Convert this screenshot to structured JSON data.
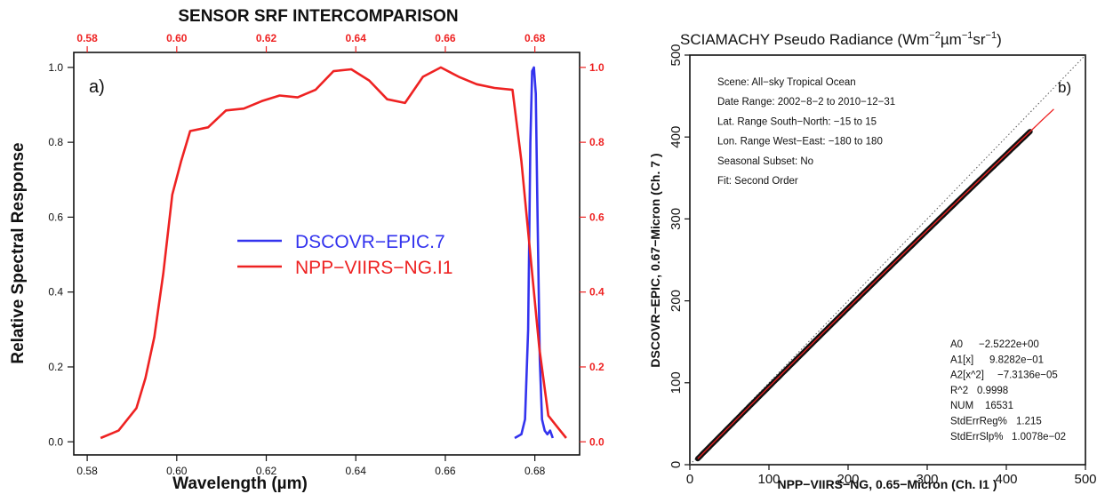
{
  "colors": {
    "red": "#ee2222",
    "blue": "#3333ee",
    "dark": "#111111",
    "fit": "#ee2222"
  },
  "chart_data": [
    {
      "type": "line",
      "title": "SENSOR SRF INTERCOMPARISON",
      "panel_label": "a)",
      "xlabel": "Wavelength (µm)",
      "ylabel": "Relative Spectral Response",
      "xlim": [
        0.577,
        0.69
      ],
      "ylim": [
        -0.035,
        1.04
      ],
      "x_ticks": [
        0.58,
        0.6,
        0.62,
        0.64,
        0.66,
        0.68
      ],
      "x_tick_labels": [
        "0.58",
        "0.60",
        "0.62",
        "0.64",
        "0.66",
        "0.68"
      ],
      "y_ticks": [
        0.0,
        0.2,
        0.4,
        0.6,
        0.8,
        1.0
      ],
      "y_tick_labels": [
        "0.0",
        "0.2",
        "0.4",
        "0.6",
        "0.8",
        "1.0"
      ],
      "legend_position": "center",
      "series": [
        {
          "name": "DSCOVR−EPIC.7",
          "color": "#3333ee",
          "x": [
            0.6755,
            0.677,
            0.6778,
            0.6785,
            0.679,
            0.6794,
            0.6798,
            0.6802,
            0.6806,
            0.6811,
            0.6816,
            0.6822,
            0.6828,
            0.6834,
            0.684
          ],
          "y": [
            0.01,
            0.02,
            0.06,
            0.3,
            0.8,
            0.99,
            1.0,
            0.93,
            0.6,
            0.22,
            0.06,
            0.03,
            0.02,
            0.03,
            0.01
          ]
        },
        {
          "name": "NPP−VIIRS−NG.I1",
          "color": "#ee2222",
          "x": [
            0.583,
            0.587,
            0.591,
            0.593,
            0.595,
            0.597,
            0.599,
            0.601,
            0.603,
            0.607,
            0.611,
            0.615,
            0.619,
            0.623,
            0.627,
            0.631,
            0.635,
            0.639,
            0.643,
            0.647,
            0.651,
            0.655,
            0.659,
            0.663,
            0.667,
            0.671,
            0.675,
            0.677,
            0.679,
            0.681,
            0.683,
            0.685,
            0.687
          ],
          "y": [
            0.01,
            0.03,
            0.09,
            0.17,
            0.28,
            0.45,
            0.66,
            0.75,
            0.83,
            0.84,
            0.885,
            0.89,
            0.91,
            0.925,
            0.92,
            0.94,
            0.99,
            0.995,
            0.965,
            0.915,
            0.905,
            0.975,
            1.0,
            0.975,
            0.955,
            0.945,
            0.94,
            0.75,
            0.5,
            0.25,
            0.07,
            0.04,
            0.01
          ]
        }
      ]
    },
    {
      "type": "scatter",
      "title": "SCIAMACHY Pseudo Radiance (Wm",
      "title_sup1": "−2",
      "title_mid": "µm",
      "title_sup2": "−1",
      "title_mid2": "sr",
      "title_sup3": "−1",
      "title_end": ")",
      "panel_label": "b)",
      "xlabel": "NPP−VIIRS−NG, 0.65−Micron (Ch.  I1 )",
      "ylabel": "DSCOVR−EPIC, 0.67−Micron (Ch.  7 )",
      "xlim": [
        0,
        500
      ],
      "ylim": [
        0,
        500
      ],
      "x_ticks": [
        0,
        100,
        200,
        300,
        400,
        500
      ],
      "x_tick_labels": [
        "0",
        "100",
        "200",
        "300",
        "400",
        "500"
      ],
      "y_ticks": [
        0,
        100,
        200,
        300,
        400,
        500
      ],
      "y_tick_labels": [
        "0",
        "100",
        "200",
        "300",
        "400",
        "500"
      ],
      "scatter_range": [
        10,
        430
      ],
      "fit": {
        "a0": -2.5222,
        "a1": 0.98282,
        "a2": -7.3136e-05,
        "x_range": [
          10,
          460
        ]
      },
      "info_lines": [
        "Scene:  All−sky Tropical Ocean",
        "Date Range:  2002−8−2 to 2010−12−31",
        "Lat. Range  South−North:  −15 to 15",
        "Lon. Range  West−East:  −180 to 180",
        "Seasonal Subset:  No",
        "Fit:  Second Order"
      ],
      "stats": [
        {
          "label": "A0",
          "value": "−2.5222e+00"
        },
        {
          "label": "A1[x]",
          "value": "9.8282e−01"
        },
        {
          "label": "A2[x^2]",
          "value": "−7.3136e−05"
        },
        {
          "label": "R^2",
          "value": "0.9998"
        },
        {
          "label": "NUM",
          "value": "16531"
        },
        {
          "label": "StdErrReg%",
          "value": "1.215"
        },
        {
          "label": "StdErrSlp%",
          "value": "1.0078e−02"
        }
      ]
    }
  ]
}
